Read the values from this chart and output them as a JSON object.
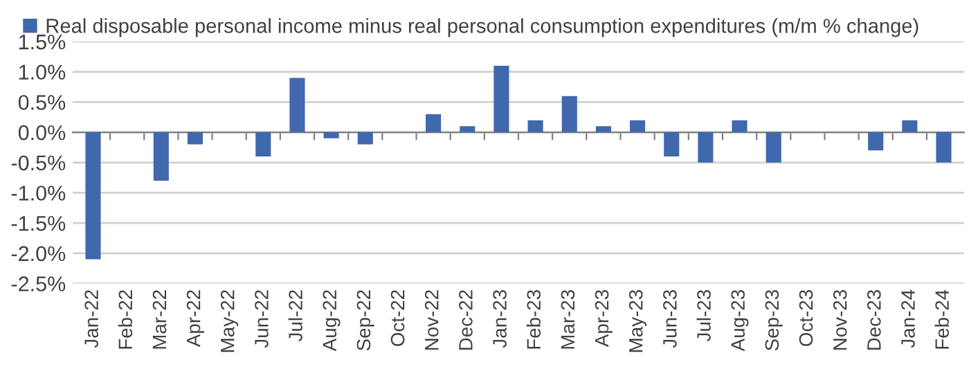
{
  "chart_data": {
    "type": "bar",
    "categories": [
      "Jan-22",
      "Feb-22",
      "Mar-22",
      "Apr-22",
      "May-22",
      "Jun-22",
      "Jul-22",
      "Aug-22",
      "Sep-22",
      "Oct-22",
      "Nov-22",
      "Dec-22",
      "Jan-23",
      "Feb-23",
      "Mar-23",
      "Apr-23",
      "May-23",
      "Jun-23",
      "Jul-23",
      "Aug-23",
      "Sep-23",
      "Oct-23",
      "Nov-23",
      "Dec-23",
      "Jan-24",
      "Feb-24"
    ],
    "series": [
      {
        "name": "Real disposable personal income minus real personal consumption expenditures (m/m % change)",
        "color": "#4069ad",
        "values": [
          -2.1,
          0,
          -0.8,
          -0.2,
          0,
          -0.4,
          0.9,
          -0.1,
          -0.2,
          0,
          0.3,
          0.1,
          1.1,
          0.2,
          0.6,
          0.1,
          0.2,
          -0.4,
          -0.5,
          0.2,
          -0.5,
          0,
          0,
          -0.3,
          0.2,
          -0.5
        ]
      }
    ],
    "ylim": [
      -2.5,
      1.5
    ],
    "yticks": [
      {
        "value": -2.5,
        "label": "-2.5%"
      },
      {
        "value": -2.0,
        "label": "-2.0%"
      },
      {
        "value": -1.5,
        "label": "-1.5%"
      },
      {
        "value": -1.0,
        "label": "-1.0%"
      },
      {
        "value": -0.5,
        "label": "-0.5%"
      },
      {
        "value": 0.0,
        "label": "0.0%"
      },
      {
        "value": 0.5,
        "label": "0.5%"
      },
      {
        "value": 1.0,
        "label": "1.0%"
      },
      {
        "value": 1.5,
        "label": "1.5%"
      }
    ],
    "grid": "y",
    "legend": "top left"
  }
}
